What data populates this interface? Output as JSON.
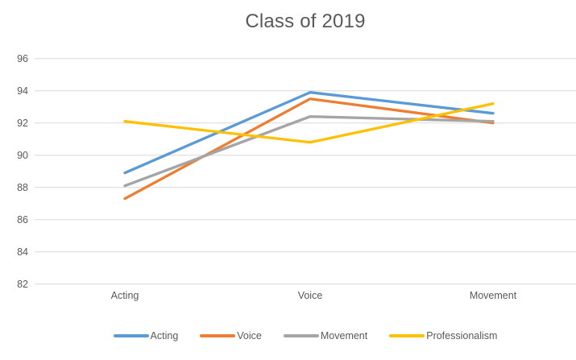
{
  "chart_data": {
    "type": "line",
    "title": "Class of 2019",
    "categories": [
      "Acting",
      "Voice",
      "Movement"
    ],
    "series": [
      {
        "name": "Acting",
        "color": "#5B9BD5",
        "values": [
          88.9,
          93.9,
          92.6
        ]
      },
      {
        "name": "Voice",
        "color": "#ED7D31",
        "values": [
          87.3,
          93.5,
          92.0
        ]
      },
      {
        "name": "Movement",
        "color": "#A5A5A5",
        "values": [
          88.1,
          92.4,
          92.1
        ]
      },
      {
        "name": "Professionalism",
        "color": "#FFC000",
        "values": [
          92.1,
          90.8,
          93.2
        ]
      }
    ],
    "ylim": [
      82,
      96
    ],
    "y_ticks": [
      96,
      94,
      92,
      90,
      88,
      86,
      84,
      82
    ],
    "grid": "horizontal-only",
    "legend_position": "bottom",
    "colors": {
      "text": "#595959",
      "gridline": "#D9D9D9",
      "background": "#FFFFFF"
    }
  }
}
